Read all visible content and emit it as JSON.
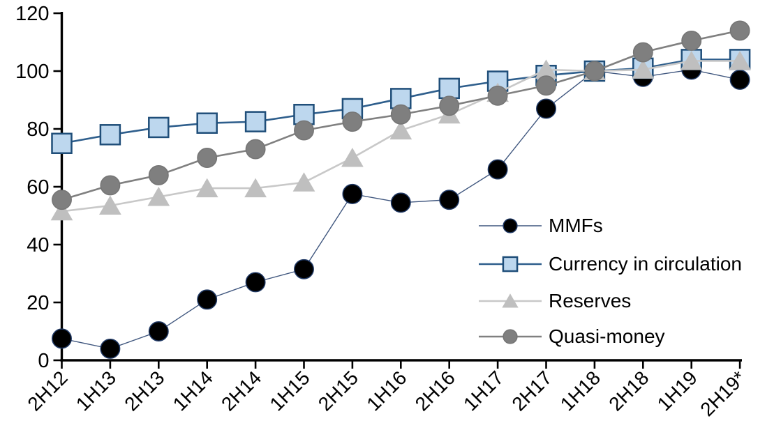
{
  "chart_data": {
    "type": "line",
    "title": "",
    "xlabel": "",
    "ylabel": "",
    "categories": [
      "2H12",
      "1H13",
      "2H13",
      "1H14",
      "2H14",
      "1H15",
      "2H15",
      "1H16",
      "2H16",
      "1H17",
      "2H17",
      "1H18",
      "2H18",
      "1H19",
      "2H19*"
    ],
    "series": [
      {
        "name": "MMFs",
        "marker": "circle",
        "line_color": "#3F567E",
        "line_width": 1.4,
        "marker_fill": "#000000",
        "marker_stroke": "#1F3864",
        "values": [
          7.5,
          4,
          10,
          21,
          27,
          31.5,
          57.5,
          54.5,
          55.5,
          66,
          87,
          100,
          98,
          100.5,
          97
        ]
      },
      {
        "name": "Currency in circulation",
        "marker": "square",
        "line_color": "#2E5E8C",
        "line_width": 2.6,
        "marker_fill": "#BDD7EE",
        "marker_stroke": "#1F4E79",
        "values": [
          75,
          78,
          80.5,
          82,
          82.5,
          85,
          87,
          90.5,
          94,
          96.5,
          98.5,
          100,
          101,
          104,
          104
        ]
      },
      {
        "name": "Reserves",
        "marker": "triangle",
        "line_color": "#C8C8C8",
        "line_width": 2.6,
        "marker_fill": "#BFBFBF",
        "marker_stroke": "#BFBFBF",
        "values": [
          51.5,
          53.5,
          56.5,
          59.5,
          59.5,
          61.5,
          70,
          79.5,
          85,
          92.5,
          100.5,
          100,
          100.5,
          103.5,
          103.5
        ]
      },
      {
        "name": "Quasi-money",
        "marker": "circle",
        "line_color": "#808080",
        "line_width": 2.6,
        "marker_fill": "#7F7F7F",
        "marker_stroke": "#757575",
        "values": [
          55.5,
          60.5,
          64,
          70,
          73,
          79.5,
          82.5,
          85,
          88,
          91.5,
          95,
          100,
          106.5,
          110.5,
          114
        ]
      }
    ],
    "ylim": [
      0,
      120
    ],
    "ytick_step": 20,
    "yticks": [
      0,
      20,
      40,
      60,
      80,
      100,
      120
    ],
    "grid": false,
    "legend_position": "right-middle",
    "axis_color": "#000000"
  }
}
